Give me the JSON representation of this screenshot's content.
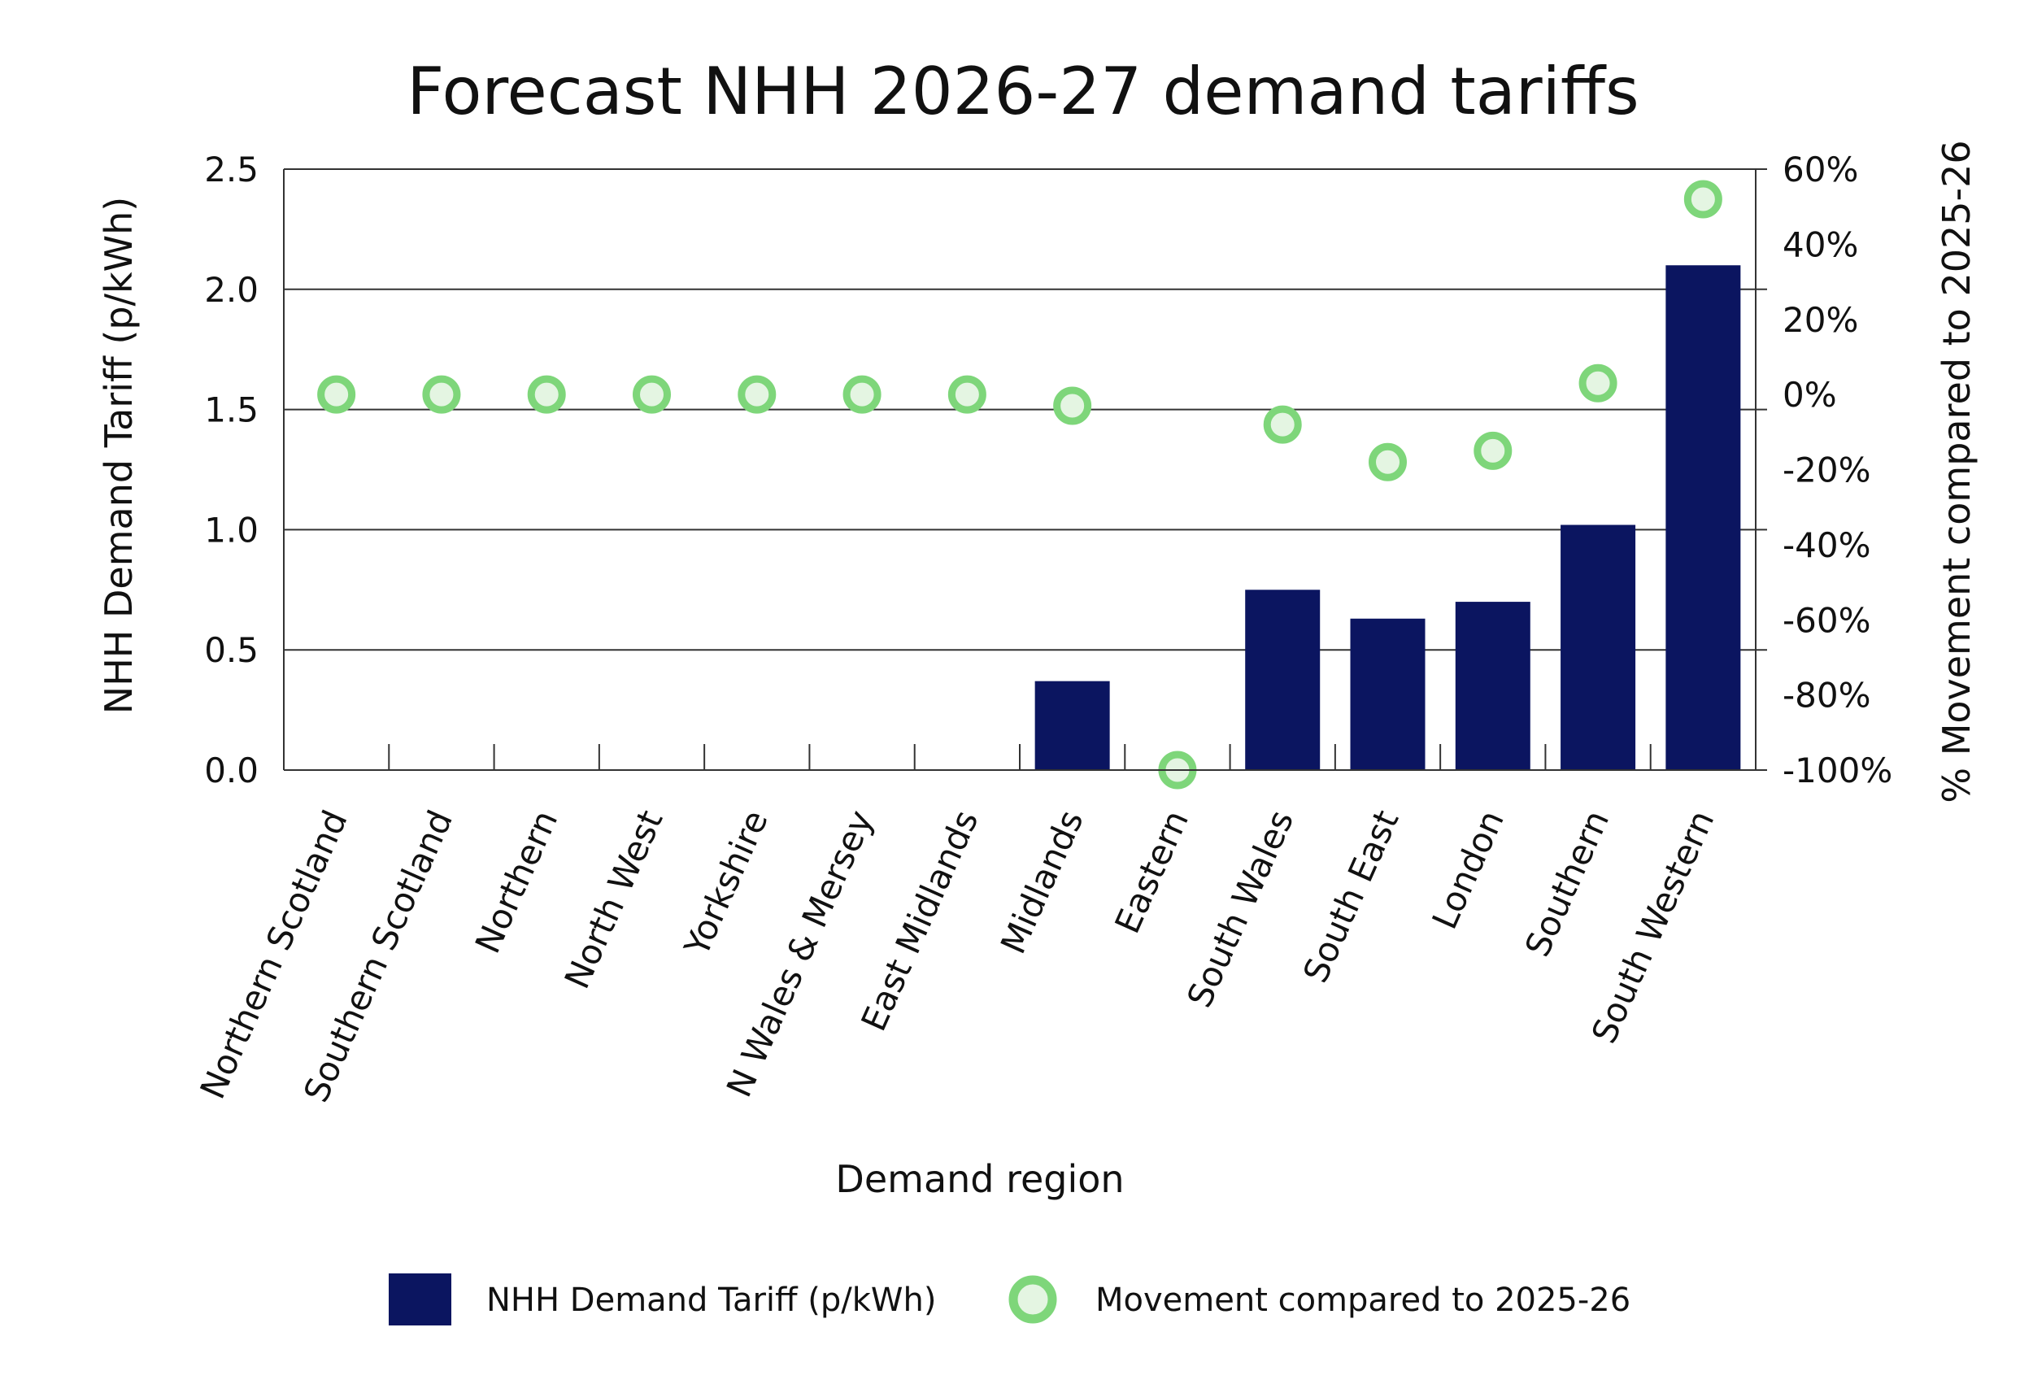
{
  "chart_data": {
    "type": "bar",
    "title": "Forecast NHH 2026-27 demand tariffs",
    "xlabel": "Demand region",
    "ylabel": "NHH Demand Tariff (p/kWh)",
    "y2label": "% Movement compared to 2025-26",
    "ylim": [
      0,
      2.5
    ],
    "y2lim": [
      -100,
      60
    ],
    "yticks": [
      "0.0",
      "0.5",
      "1.0",
      "1.5",
      "2.0",
      "2.5"
    ],
    "y2ticks": [
      "-100%",
      "-80%",
      "-60%",
      "-40%",
      "-20%",
      "0%",
      "20%",
      "40%",
      "60%"
    ],
    "grid": true,
    "legend_placement": "bottom",
    "categories": [
      "Northern Scotland",
      "Southern Scotland",
      "Northern",
      "North West",
      "Yorkshire",
      "N Wales & Mersey",
      "East Midlands",
      "Midlands",
      "Eastern",
      "South Wales",
      "South East",
      "London",
      "Southern",
      "South Western"
    ],
    "series": [
      {
        "name": "NHH Demand Tariff (p/kWh)",
        "kind": "bar",
        "axis": "left",
        "color": "#0b1560",
        "values": [
          0,
          0,
          0,
          0,
          0,
          0,
          0,
          0.37,
          0,
          0.75,
          0.63,
          0.7,
          1.02,
          2.1
        ]
      },
      {
        "name": "Movement compared to 2025-26",
        "kind": "scatter",
        "axis": "right",
        "color": "#7ed67a",
        "fill": "#e4f5e2",
        "values": [
          0,
          0,
          0,
          0,
          0,
          0,
          0,
          -3,
          -100,
          -8,
          -18,
          -15,
          3,
          52
        ]
      }
    ]
  }
}
